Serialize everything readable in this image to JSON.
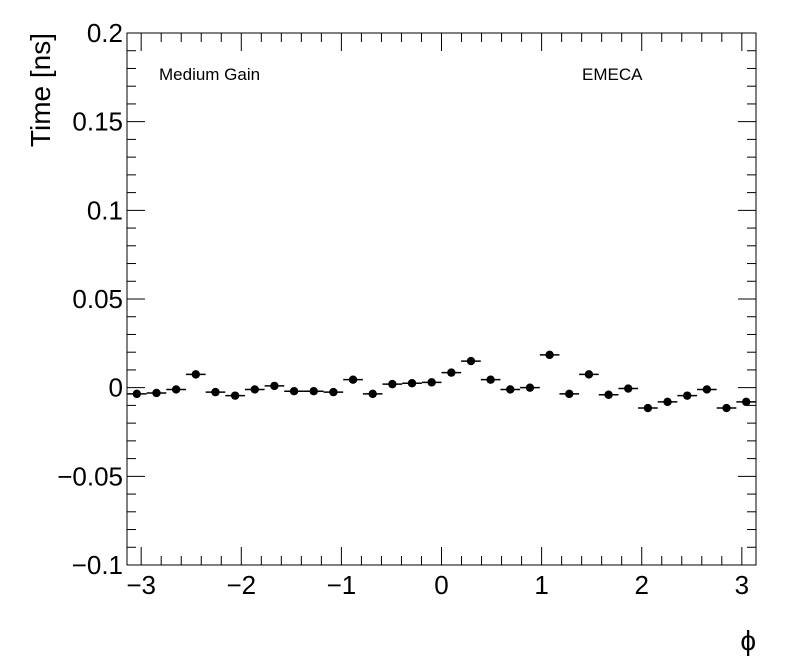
{
  "chart_data": {
    "type": "scatter",
    "title": "",
    "xlabel": "ϕ",
    "ylabel": "Time [ns]",
    "xlim": [
      -3.1416,
      3.1416
    ],
    "ylim": [
      -0.1,
      0.2
    ],
    "x_ticks": [
      -3,
      -2,
      -1,
      0,
      1,
      2,
      3
    ],
    "x_tick_labels": [
      "−3",
      "−2",
      "−1",
      "0",
      "1",
      "2",
      "3"
    ],
    "y_ticks": [
      -0.1,
      -0.05,
      0,
      0.05,
      0.1,
      0.15,
      0.2
    ],
    "y_tick_labels": [
      "−0.1",
      "−0.05",
      "0",
      "0.05",
      "0.1",
      "0.15",
      "0.2"
    ],
    "annotations": [
      {
        "id": "gain",
        "text": "Medium Gain"
      },
      {
        "id": "region",
        "text": "EMECA"
      }
    ],
    "grid": false,
    "bin_width": 0.19635,
    "series": [
      {
        "x": [
          -3.0434,
          -2.8471,
          -2.6507,
          -2.4544,
          -2.258,
          -2.0617,
          -1.8653,
          -1.669,
          -1.4726,
          -1.2763,
          -1.0799,
          -0.8836,
          -0.6872,
          -0.4909,
          -0.2945,
          -0.0982,
          0.0982,
          0.2945,
          0.4909,
          0.6872,
          0.8836,
          1.0799,
          1.2763,
          1.4726,
          1.669,
          1.8653,
          2.0617,
          2.258,
          2.4544,
          2.6507,
          2.8471,
          3.0434
        ],
        "y": [
          -0.0035,
          -0.003,
          -0.001,
          0.0075,
          -0.0025,
          -0.0045,
          -0.001,
          0.001,
          -0.002,
          -0.002,
          -0.0025,
          0.0045,
          -0.0035,
          0.002,
          0.0025,
          0.003,
          0.0085,
          0.015,
          0.0045,
          -0.001,
          0.0,
          0.0185,
          -0.0035,
          0.0075,
          -0.004,
          -0.0005,
          -0.0115,
          -0.008,
          -0.0045,
          -0.001,
          -0.0115,
          -0.008
        ]
      }
    ]
  }
}
